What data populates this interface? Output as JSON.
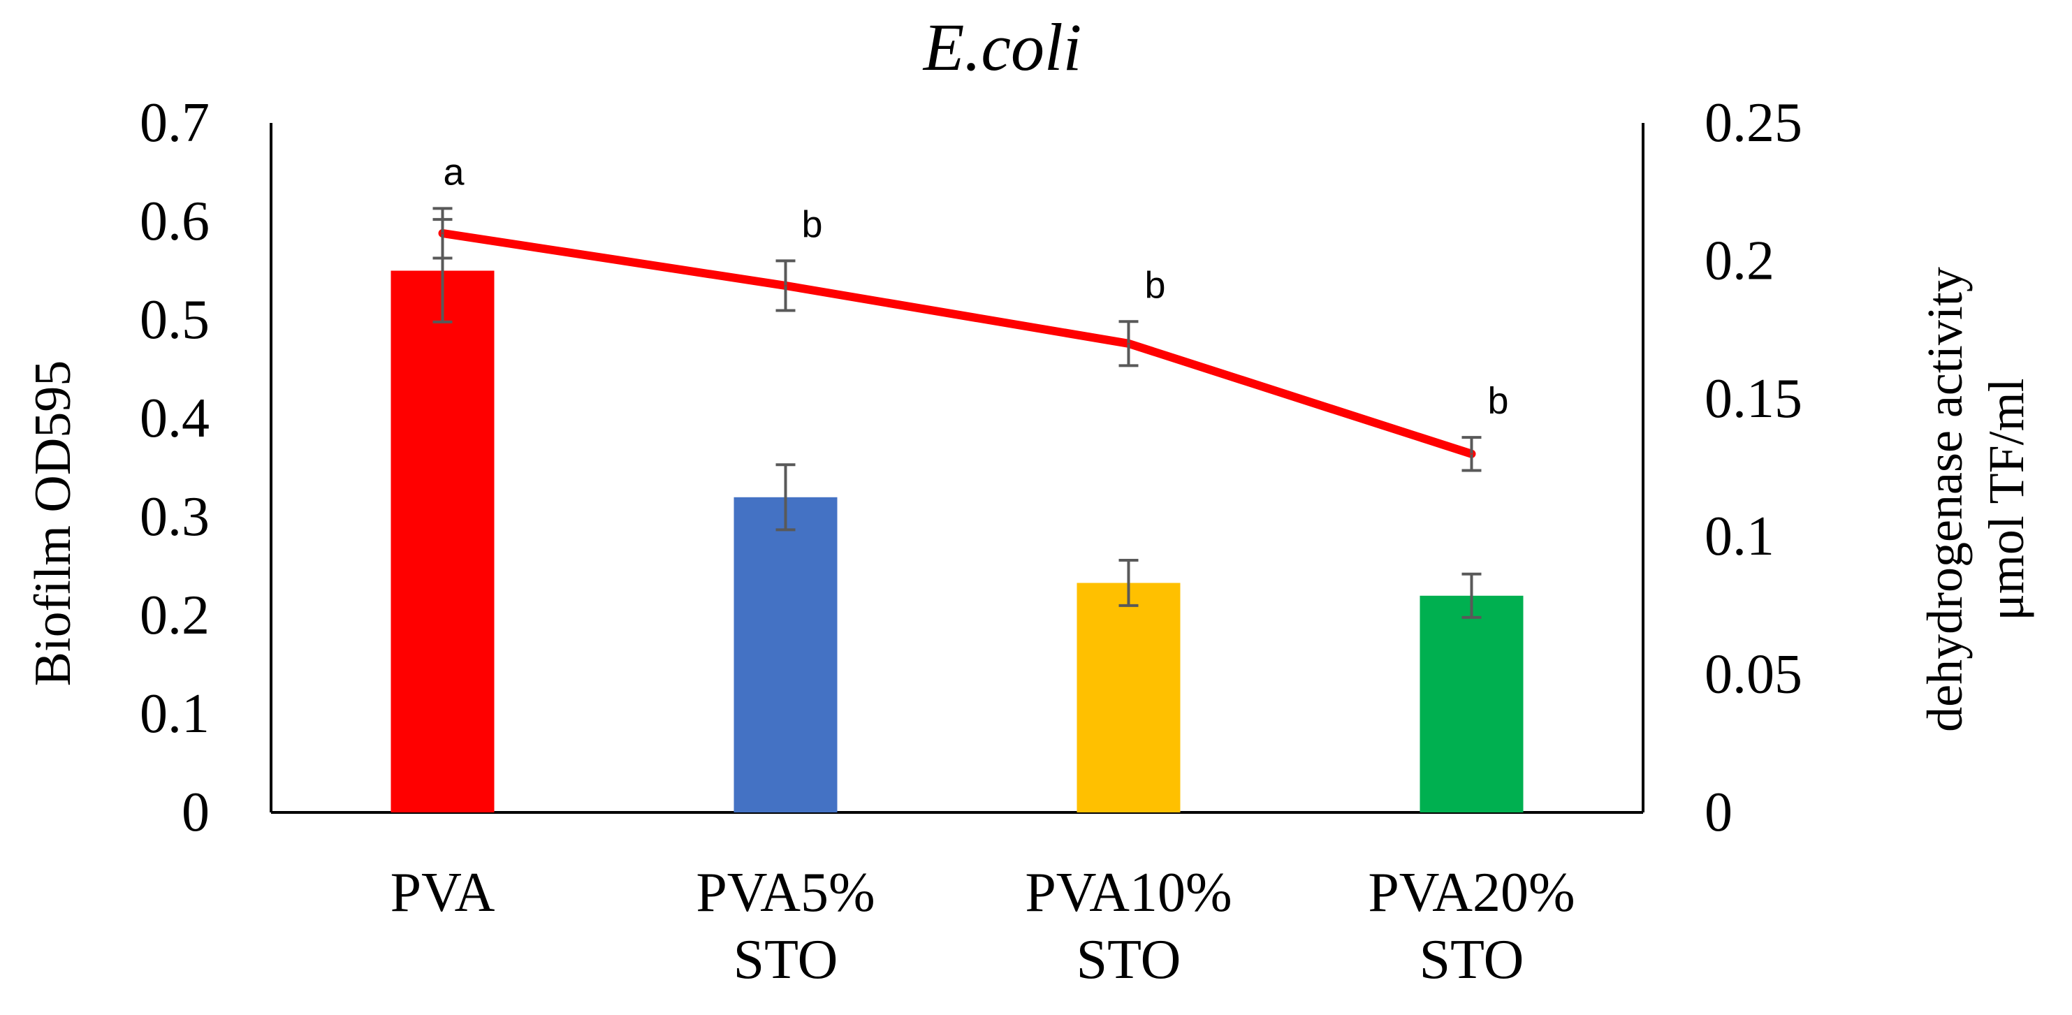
{
  "chart_data": {
    "type": "bar+line",
    "title": "E.coli",
    "categories": [
      [
        "PVA"
      ],
      [
        "PVA5%",
        "STO"
      ],
      [
        "PVA10%",
        "STO"
      ],
      [
        "PVA20%",
        "STO"
      ]
    ],
    "bars": {
      "name": "Biofilm OD595",
      "axis": "left",
      "values": [
        0.55,
        0.32,
        0.233,
        0.22
      ],
      "errors": [
        0.052,
        0.033,
        0.023,
        0.022
      ],
      "colors": [
        "#ff0000",
        "#4472c4",
        "#ffc000",
        "#00b050"
      ]
    },
    "line": {
      "name": "dehydrogenase activity",
      "axis": "right",
      "values": [
        0.21,
        0.191,
        0.17,
        0.13
      ],
      "errors": [
        0.009,
        0.009,
        0.008,
        0.006
      ],
      "color": "#ff0000",
      "labels": [
        "a",
        "b",
        "b",
        "b"
      ]
    },
    "y_left": {
      "label": "Biofilm OD595",
      "lim": [
        0,
        0.7
      ],
      "ticks": [
        "0",
        "0.1",
        "0.2",
        "0.3",
        "0.4",
        "0.5",
        "0.6",
        "0.7"
      ]
    },
    "y_right": {
      "label_line1": "dehydrogenase  activity",
      "label_line2": "μmol TF/ml",
      "lim": [
        0,
        0.25
      ],
      "ticks": [
        "0",
        "0.05",
        "0.1",
        "0.15",
        "0.2",
        "0.25"
      ]
    },
    "error_bar_color": "#595959",
    "grid": false,
    "legend": "none"
  }
}
